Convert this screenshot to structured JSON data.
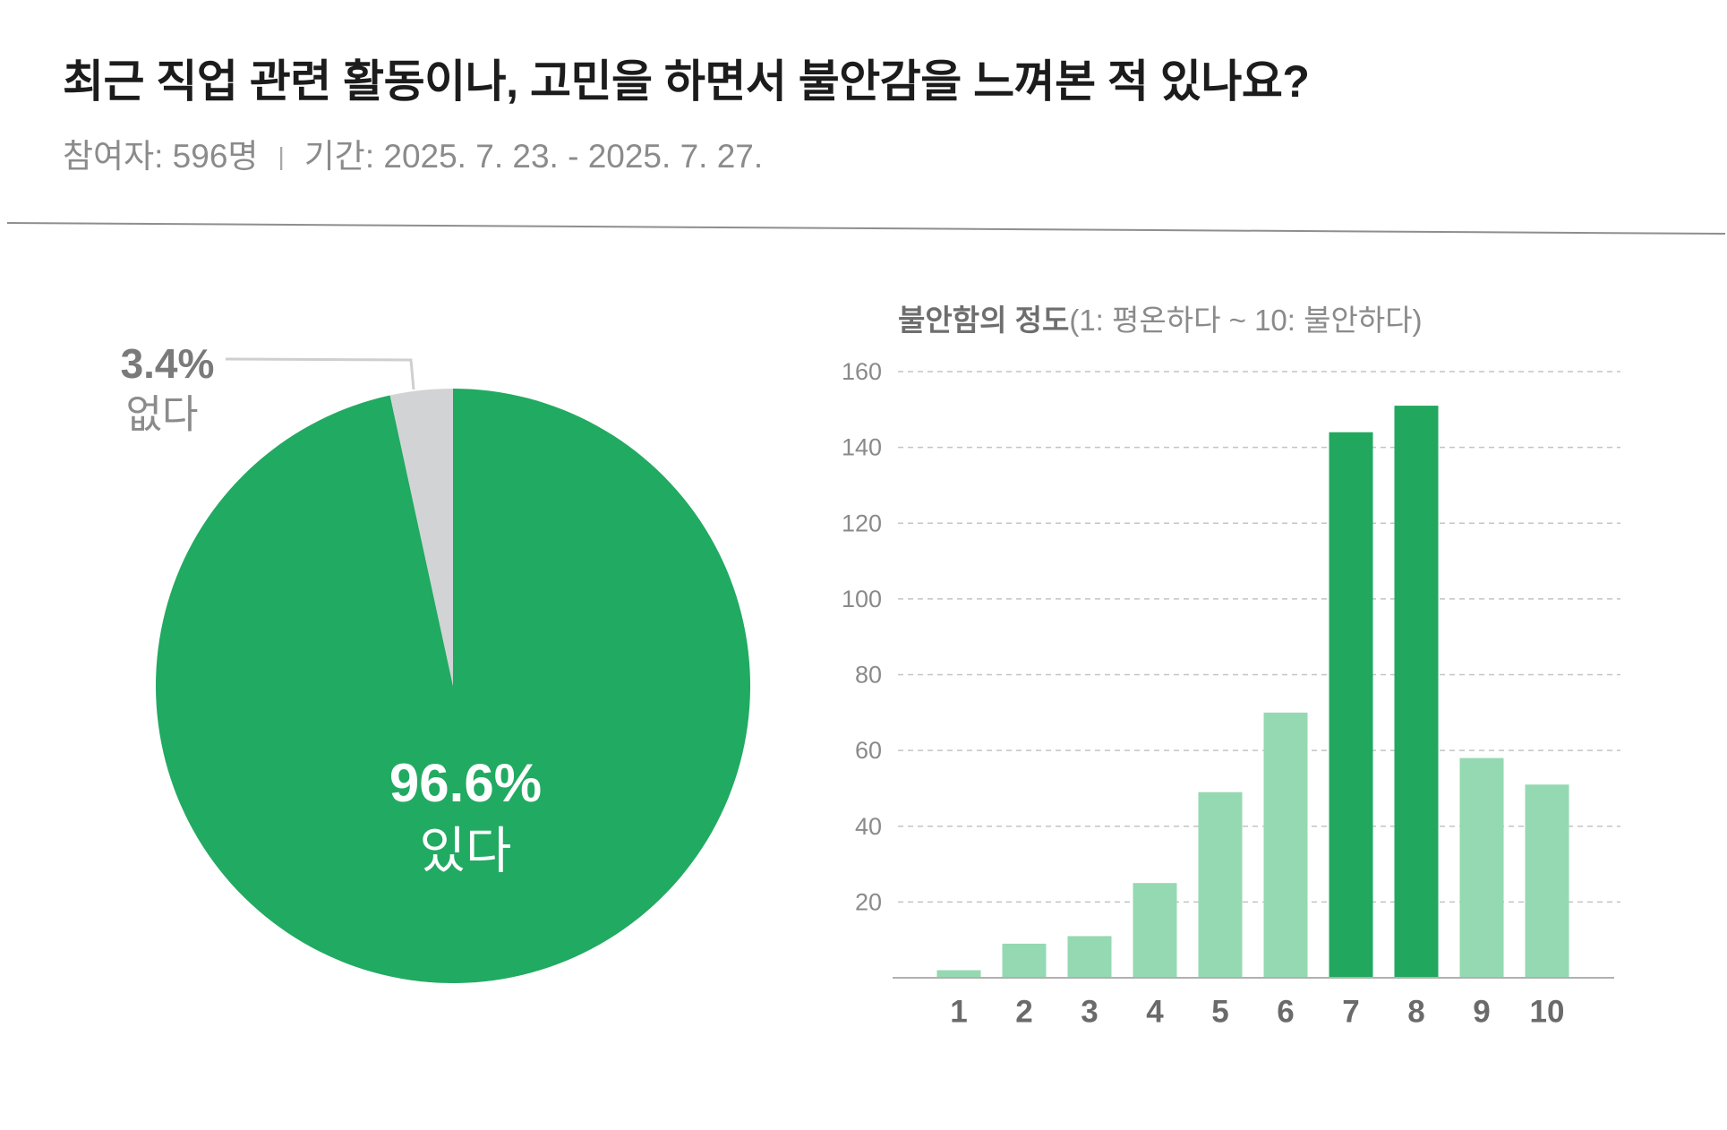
{
  "header": {
    "title": "최근 직업 관련 활동이나, 고민을 하면서 불안감을 느껴본 적 있나요?",
    "participants": "참여자: 596명",
    "separator": "|",
    "period": "기간: 2025. 7. 23. - 2025. 7. 27."
  },
  "chart_data": [
    {
      "type": "pie",
      "unit": "%",
      "slices": [
        {
          "label": "있다",
          "value": 96.6,
          "color": "#21AA61"
        },
        {
          "label": "없다",
          "value": 3.4,
          "color": "#D1D3D5"
        }
      ]
    },
    {
      "type": "bar",
      "title_main": "불안함의 정도",
      "title_scale": "(1: 평온하다 ~ 10: 불안하다)",
      "categories": [
        "1",
        "2",
        "3",
        "4",
        "5",
        "6",
        "7",
        "8",
        "9",
        "10"
      ],
      "values": [
        2,
        9,
        11,
        25,
        49,
        70,
        144,
        151,
        58,
        51
      ],
      "ylim": [
        0,
        160
      ],
      "yticks": [
        20,
        40,
        60,
        80,
        100,
        120,
        140,
        160
      ],
      "grid": true,
      "highlight_categories": [
        "7",
        "8"
      ],
      "colors": {
        "highlight": "#21A85E",
        "default": "#94D9B2"
      }
    }
  ]
}
